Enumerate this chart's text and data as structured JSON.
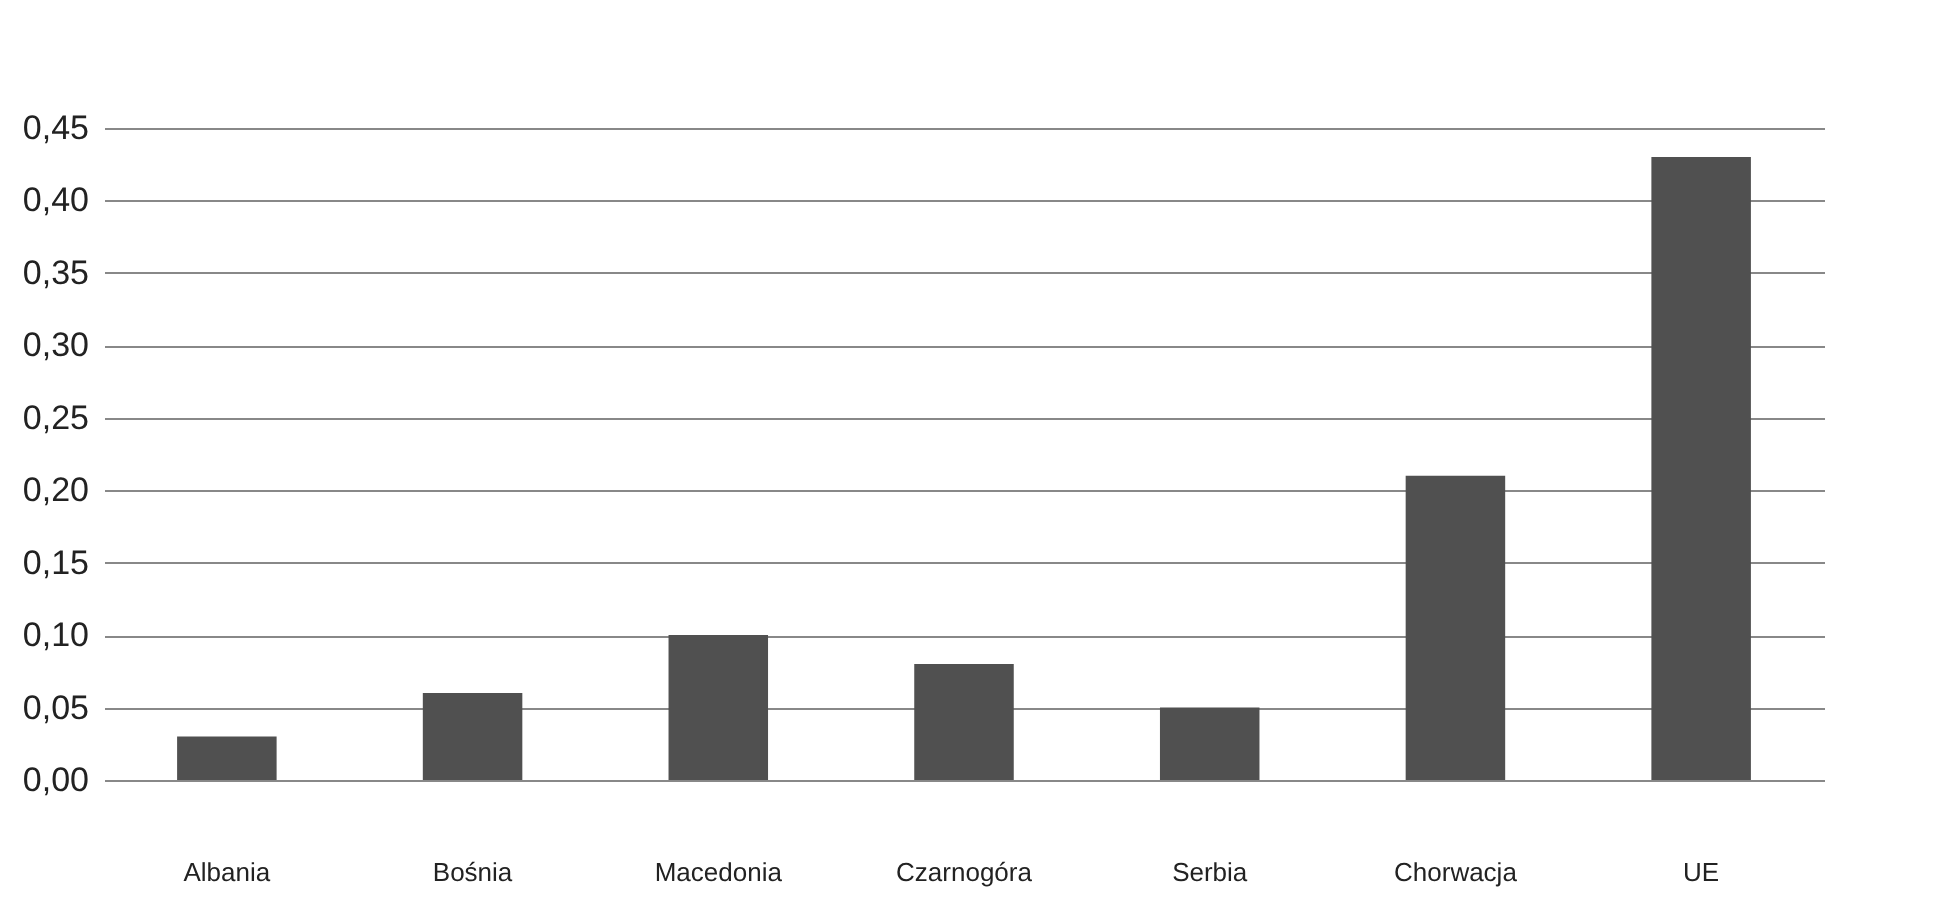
{
  "chart_data": {
    "type": "bar",
    "categories": [
      "Albania",
      "Bośnia",
      "Macedonia",
      "Czarnogóra",
      "Serbia",
      "Chorwacja",
      "UE"
    ],
    "values": [
      0.03,
      0.06,
      0.1,
      0.08,
      0.05,
      0.21,
      0.43
    ],
    "color": "#505050",
    "ylim": [
      0,
      0.45
    ],
    "yticks": [
      {
        "value": 0,
        "label": "0,00"
      },
      {
        "value": 0.05,
        "label": "0,05"
      },
      {
        "value": 0.1,
        "label": "0,10"
      },
      {
        "value": 0.15,
        "label": "0,15"
      },
      {
        "value": 0.2,
        "label": "0,20"
      },
      {
        "value": 0.25,
        "label": "0,25"
      },
      {
        "value": 0.3,
        "label": "0,30"
      },
      {
        "value": 0.35,
        "label": "0,35"
      },
      {
        "value": 0.4,
        "label": "0,40"
      },
      {
        "value": 0.45,
        "label": "0,45"
      }
    ],
    "grid": "y"
  }
}
